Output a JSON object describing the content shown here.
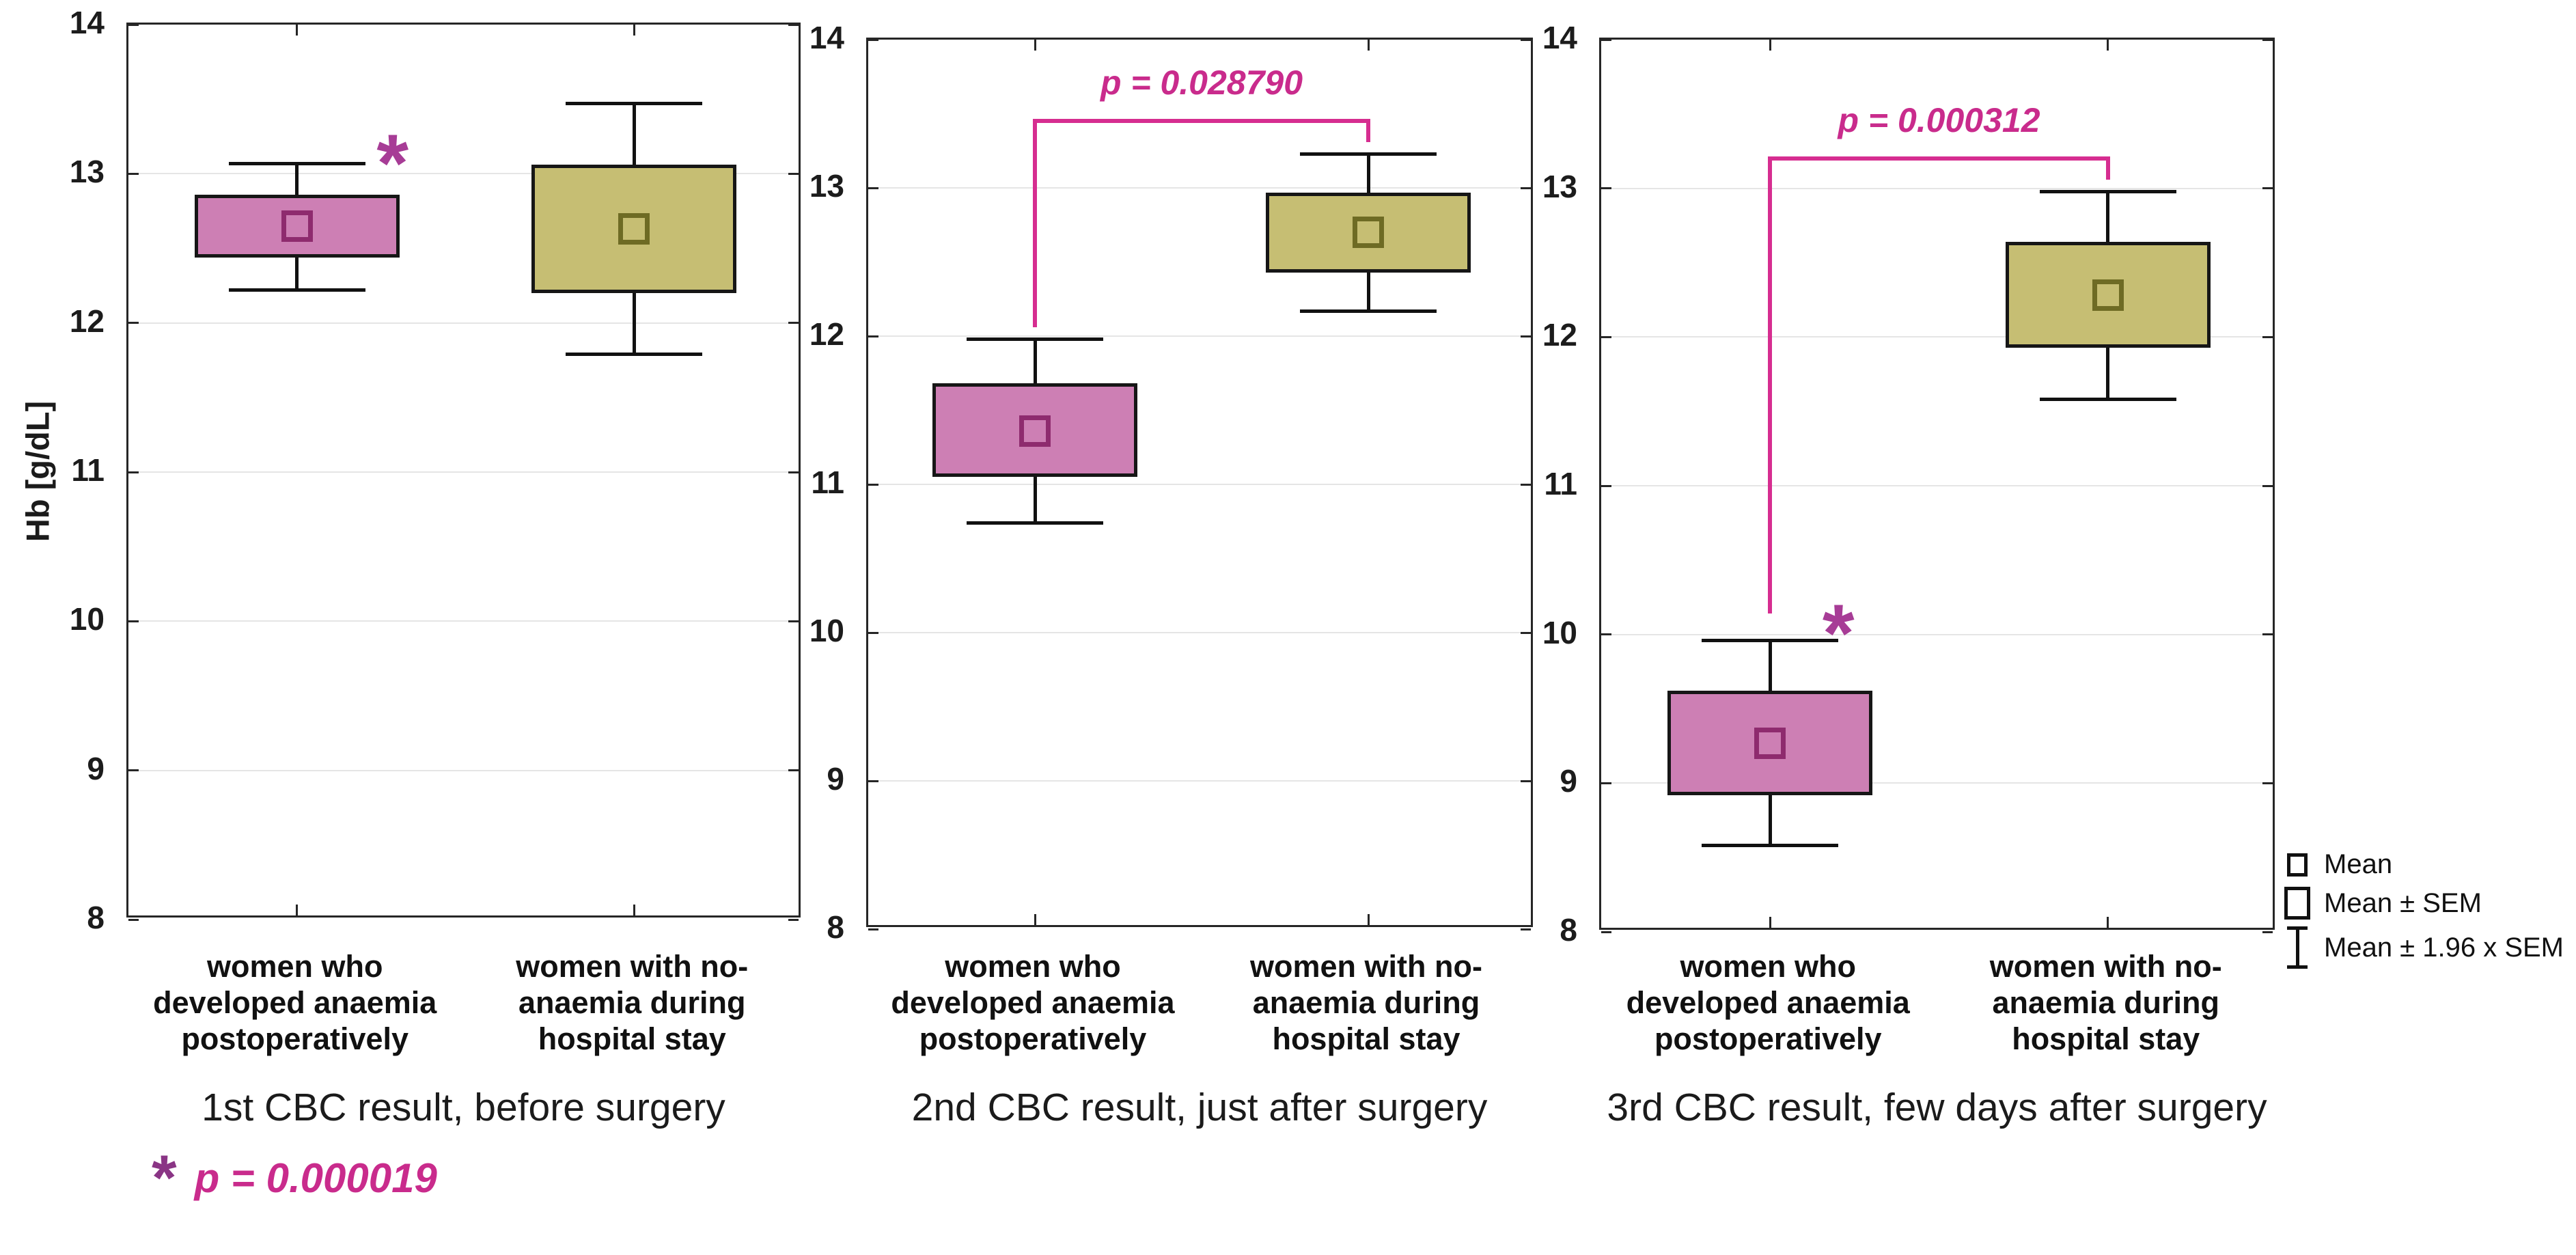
{
  "chart_data": {
    "type": "box",
    "title": "",
    "ylabel": "Hb [g/dL]",
    "ylim": [
      8,
      14
    ],
    "yticks": [
      14,
      13,
      12,
      11,
      10,
      9,
      8
    ],
    "grid": true,
    "legend_position": "bottom-right",
    "legend": [
      {
        "glyph": "mean-square",
        "label": "Mean"
      },
      {
        "glyph": "sem-box",
        "label": "Mean ± SEM"
      },
      {
        "glyph": "whisker",
        "label": "Mean ± 1.96 x SEM"
      }
    ],
    "categories": [
      [
        "women who",
        "developed anaemia",
        "postoperatively"
      ],
      [
        "women with no-",
        "anaemia during",
        "hospital stay"
      ]
    ],
    "colors": {
      "anaemia_fill": "#cd7fb4",
      "anaemia_marker": "#8e2b6e",
      "no_anaemia_fill": "#c6be73",
      "no_anaemia_marker": "#6e6b24",
      "box_border": "#161616",
      "whisker": "#111111",
      "bracket": "#d62d90",
      "p_text": "#c92b8c",
      "panel_asterisk": "#a73c96",
      "footnote_asterisk": "#8a3585"
    },
    "panels": [
      {
        "caption": "1st CBC result, before surgery",
        "series": [
          {
            "name": "women who developed anaemia postoperatively",
            "mean": 12.65,
            "mean_minus_sem": 12.44,
            "mean_plus_sem": 12.86,
            "mean_minus_196sem": 12.22,
            "mean_plus_196sem": 13.07
          },
          {
            "name": "women with no-anaemia during hospital stay",
            "mean": 12.63,
            "mean_minus_sem": 12.2,
            "mean_plus_sem": 13.06,
            "mean_minus_196sem": 11.79,
            "mean_plus_196sem": 13.47
          }
        ],
        "asterisk": {
          "symbol": "*",
          "on_series": 0,
          "dx": 140,
          "value": 13.18
        },
        "p_value_label": null
      },
      {
        "caption": "2nd CBC result, just after surgery",
        "series": [
          {
            "name": "women who developed anaemia postoperatively",
            "mean": 11.36,
            "mean_minus_sem": 11.05,
            "mean_plus_sem": 11.68,
            "mean_minus_196sem": 10.74,
            "mean_plus_196sem": 11.98
          },
          {
            "name": "women with no-anaemia during hospital stay",
            "mean": 12.7,
            "mean_minus_sem": 12.43,
            "mean_plus_sem": 12.97,
            "mean_minus_196sem": 12.17,
            "mean_plus_196sem": 13.23
          }
        ],
        "asterisk": null,
        "p_value_label": "p = 0.028790"
      },
      {
        "caption": "3rd CBC result, few days after surgery",
        "series": [
          {
            "name": "women who developed anaemia postoperatively",
            "mean": 9.27,
            "mean_minus_sem": 8.92,
            "mean_plus_sem": 9.62,
            "mean_minus_196sem": 8.58,
            "mean_plus_196sem": 9.96
          },
          {
            "name": "women with no-anaemia during hospital stay",
            "mean": 12.28,
            "mean_minus_sem": 11.93,
            "mean_plus_sem": 12.64,
            "mean_minus_196sem": 11.58,
            "mean_plus_196sem": 12.98
          }
        ],
        "asterisk": {
          "symbol": "*",
          "on_series": 0,
          "dx": 100,
          "value": 10.12
        },
        "p_value_label": "p = 0.000312"
      }
    ],
    "significance_footnote": {
      "asterisk": "*",
      "text": "p = 0.000019"
    }
  }
}
